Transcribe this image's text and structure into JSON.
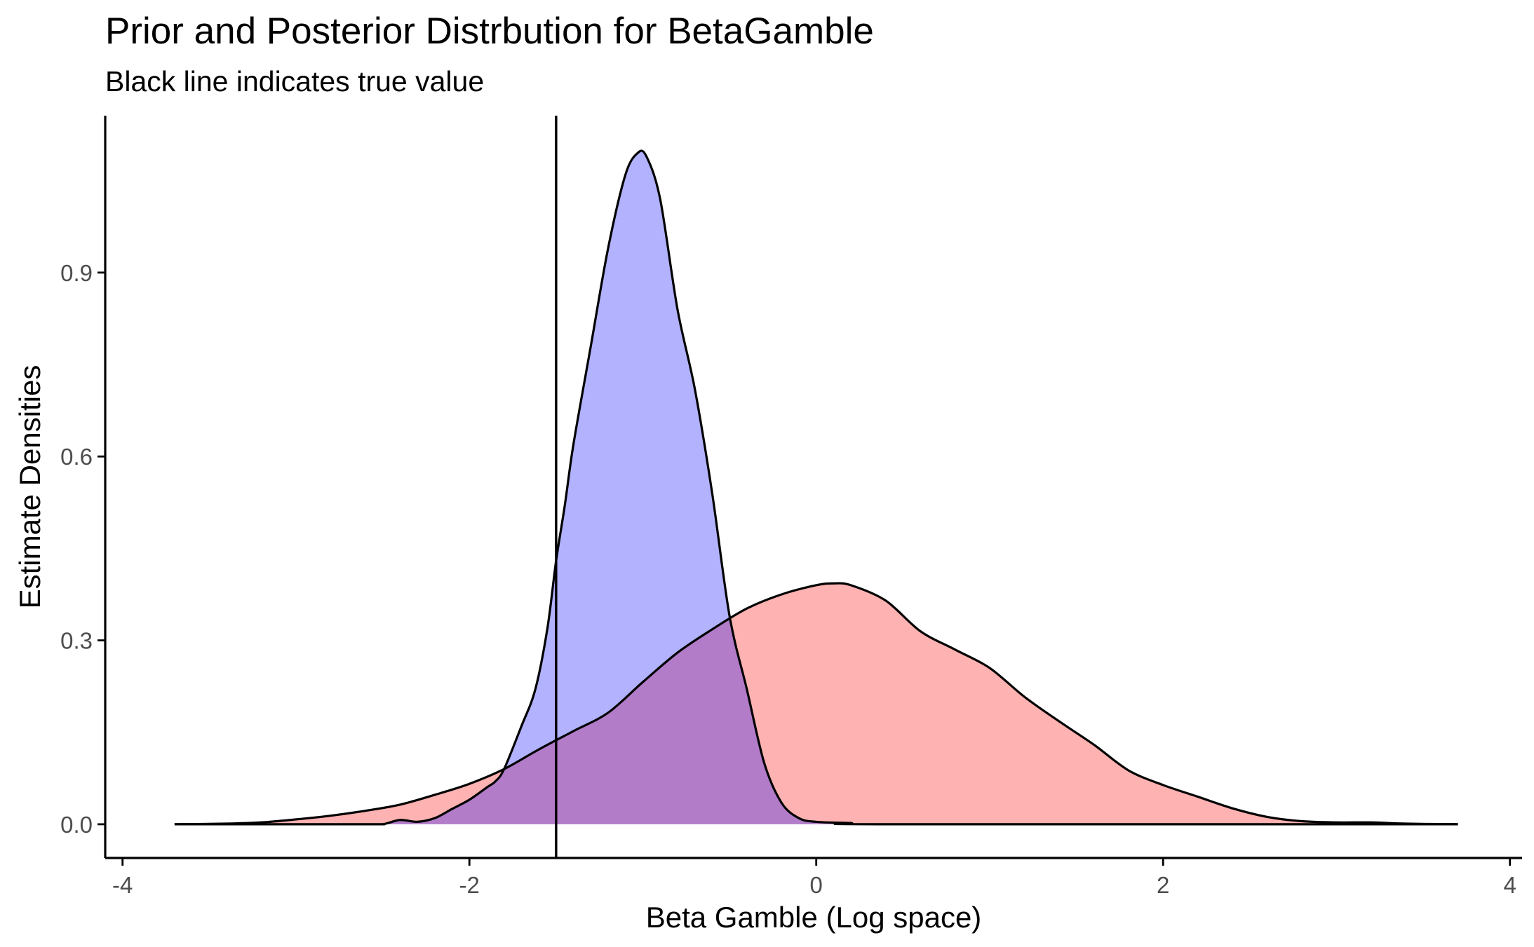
{
  "chart_data": {
    "type": "area",
    "title": "Prior and Posterior Distrbution for BetaGamble",
    "subtitle": "Black line indicates true value",
    "xlabel": "Beta Gamble (Log space)",
    "ylabel": "Estimate Densities",
    "xlim": [
      -4,
      4
    ],
    "ylim": [
      0,
      1.1
    ],
    "x_ticks": [
      -4,
      -2,
      0,
      2,
      4
    ],
    "x_tick_labels": [
      "-4",
      "-2",
      "0",
      "2",
      "4"
    ],
    "y_ticks": [
      0.0,
      0.3,
      0.6,
      0.9
    ],
    "y_tick_labels": [
      "0.0",
      "0.3",
      "0.6",
      "0.9"
    ],
    "grid": false,
    "legend": "none",
    "true_value": -1.5,
    "fill_opacity": 0.3,
    "series": [
      {
        "color": "#FF0000",
        "points": [
          [
            -3.7,
            0.0
          ],
          [
            -3.4,
            0.001
          ],
          [
            -3.2,
            0.003
          ],
          [
            -3.0,
            0.008
          ],
          [
            -2.8,
            0.014
          ],
          [
            -2.6,
            0.022
          ],
          [
            -2.4,
            0.032
          ],
          [
            -2.2,
            0.048
          ],
          [
            -2.0,
            0.066
          ],
          [
            -1.8,
            0.09
          ],
          [
            -1.6,
            0.122
          ],
          [
            -1.4,
            0.152
          ],
          [
            -1.2,
            0.182
          ],
          [
            -1.0,
            0.232
          ],
          [
            -0.8,
            0.28
          ],
          [
            -0.6,
            0.318
          ],
          [
            -0.4,
            0.352
          ],
          [
            -0.2,
            0.375
          ],
          [
            0.0,
            0.39
          ],
          [
            0.1,
            0.393
          ],
          [
            0.2,
            0.39
          ],
          [
            0.4,
            0.365
          ],
          [
            0.6,
            0.315
          ],
          [
            0.8,
            0.285
          ],
          [
            1.0,
            0.255
          ],
          [
            1.2,
            0.208
          ],
          [
            1.4,
            0.168
          ],
          [
            1.6,
            0.13
          ],
          [
            1.8,
            0.088
          ],
          [
            2.0,
            0.064
          ],
          [
            2.2,
            0.045
          ],
          [
            2.4,
            0.026
          ],
          [
            2.6,
            0.012
          ],
          [
            2.8,
            0.005
          ],
          [
            3.0,
            0.003
          ],
          [
            3.2,
            0.003
          ],
          [
            3.4,
            0.001
          ],
          [
            3.7,
            0.0
          ]
        ]
      },
      {
        "color": "#0000FF",
        "points": [
          [
            -3.7,
            0.0
          ],
          [
            -2.6,
            0.0
          ],
          [
            -2.5,
            0.0
          ],
          [
            -2.4,
            0.007
          ],
          [
            -2.3,
            0.004
          ],
          [
            -2.2,
            0.01
          ],
          [
            -2.1,
            0.025
          ],
          [
            -2.0,
            0.04
          ],
          [
            -1.9,
            0.06
          ],
          [
            -1.85,
            0.07
          ],
          [
            -1.8,
            0.09
          ],
          [
            -1.7,
            0.16
          ],
          [
            -1.62,
            0.22
          ],
          [
            -1.55,
            0.32
          ],
          [
            -1.5,
            0.43
          ],
          [
            -1.45,
            0.52
          ],
          [
            -1.4,
            0.62
          ],
          [
            -1.3,
            0.78
          ],
          [
            -1.2,
            0.94
          ],
          [
            -1.1,
            1.06
          ],
          [
            -1.03,
            1.095
          ],
          [
            -0.98,
            1.09
          ],
          [
            -0.9,
            1.02
          ],
          [
            -0.8,
            0.84
          ],
          [
            -0.7,
            0.71
          ],
          [
            -0.6,
            0.54
          ],
          [
            -0.5,
            0.34
          ],
          [
            -0.4,
            0.22
          ],
          [
            -0.3,
            0.1
          ],
          [
            -0.2,
            0.035
          ],
          [
            -0.1,
            0.01
          ],
          [
            0.0,
            0.004
          ],
          [
            0.2,
            0.002
          ],
          [
            0.4,
            0.0
          ],
          [
            3.7,
            0.0
          ]
        ]
      }
    ]
  }
}
